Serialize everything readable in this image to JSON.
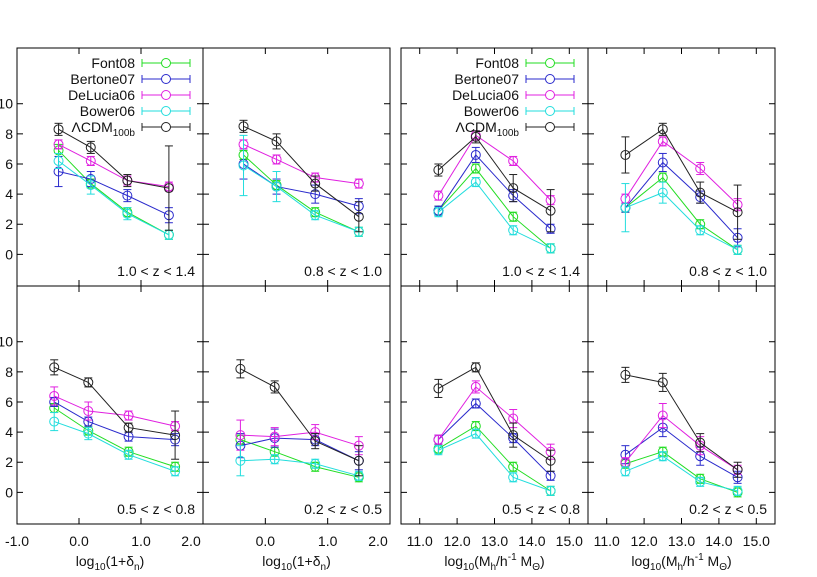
{
  "chart_data": [
    {
      "type": "line",
      "xlim": [
        -1,
        2
      ],
      "ylim": [
        -2.1,
        13.7
      ],
      "xticks": [
        {
          "value": -1,
          "label": "-1.0"
        },
        {
          "value": 0,
          "label": "0.0"
        },
        {
          "value": 1,
          "label": "1.0"
        },
        {
          "value": 2,
          "label": "2.0"
        }
      ],
      "xtick_labels": false,
      "yticks": [
        0,
        2,
        4,
        6,
        8,
        10
      ],
      "ytick_labels": true,
      "legend": true,
      "annotation": "1.0 < z < 1.4",
      "x": [
        -0.33,
        0.19,
        0.78,
        1.45
      ],
      "series": [
        {
          "name": "Font08",
          "color": "#22dd22",
          "values": [
            6.9,
            4.7,
            2.8,
            1.3
          ],
          "errors": [
            0.4,
            0.3,
            0.3,
            0.3
          ]
        },
        {
          "name": "Bertone07",
          "color": "#2a2acc",
          "values": [
            5.5,
            5.0,
            3.9,
            2.6
          ],
          "errors": [
            1.0,
            0.5,
            0.4,
            0.5
          ]
        },
        {
          "name": "DeLucia06",
          "color": "#e020e0",
          "values": [
            7.3,
            6.2,
            4.9,
            4.5
          ],
          "errors": [
            0.3,
            0.3,
            0.3,
            0.3
          ]
        },
        {
          "name": "Bower06",
          "color": "#22dddd",
          "values": [
            6.2,
            4.6,
            2.7,
            1.3
          ],
          "errors": [
            0.5,
            0.6,
            0.4,
            0.3
          ]
        },
        {
          "name": "ΛCDM",
          "name_subscript": "100b",
          "color": "#222222",
          "values": [
            8.3,
            7.1,
            4.9,
            4.4
          ],
          "errors": [
            0.4,
            0.4,
            0.4,
            2.8
          ]
        }
      ]
    },
    {
      "type": "line",
      "xlim": [
        -1,
        2
      ],
      "ylim": [
        -2.1,
        13.7
      ],
      "xticks": [
        0,
        1,
        2
      ],
      "xtick_labels": false,
      "yticks": [
        0,
        2,
        4,
        6,
        8,
        10
      ],
      "ytick_labels": false,
      "annotation": "0.8 < z < 1.0",
      "x": [
        -0.35,
        0.18,
        0.8,
        1.5
      ],
      "series": [
        {
          "color": "#22dd22",
          "values": [
            6.6,
            4.6,
            2.8,
            1.5
          ],
          "errors": [
            0.3,
            0.3,
            0.3,
            0.3
          ]
        },
        {
          "color": "#2a2acc",
          "values": [
            6.0,
            4.5,
            4.0,
            3.2
          ],
          "errors": [
            1.0,
            0.5,
            0.6,
            0.5
          ]
        },
        {
          "color": "#e020e0",
          "values": [
            7.3,
            6.3,
            5.1,
            4.7
          ],
          "errors": [
            0.3,
            0.3,
            0.3,
            0.3
          ]
        },
        {
          "color": "#22dddd",
          "values": [
            5.9,
            4.5,
            2.6,
            1.5
          ],
          "errors": [
            2.0,
            1.0,
            0.3,
            0.3
          ]
        },
        {
          "color": "#222222",
          "values": [
            8.5,
            7.5,
            4.7,
            2.5
          ],
          "errors": [
            0.4,
            0.5,
            0.5,
            1.0
          ]
        }
      ]
    },
    {
      "type": "line",
      "xlim": [
        10.5,
        15.5
      ],
      "ylim": [
        -2.1,
        13.7
      ],
      "xticks": [
        11,
        12,
        13,
        14,
        15
      ],
      "xtick_labels": false,
      "yticks": [
        0,
        2,
        4,
        6,
        8,
        10
      ],
      "ytick_labels": false,
      "legend": true,
      "annotation": "1.0 < z < 1.4",
      "x": [
        11.5,
        12.5,
        13.5,
        14.5
      ],
      "series": [
        {
          "name": "Font08",
          "color": "#22dd22",
          "values": [
            2.9,
            5.7,
            2.5,
            0.4
          ],
          "errors": [
            0.3,
            0.3,
            0.3,
            0.3
          ]
        },
        {
          "name": "Bertone07",
          "color": "#2a2acc",
          "values": [
            2.9,
            6.6,
            3.9,
            1.7
          ],
          "errors": [
            0.3,
            0.5,
            0.4,
            0.3
          ]
        },
        {
          "name": "DeLucia06",
          "color": "#e020e0",
          "values": [
            3.9,
            7.9,
            6.2,
            3.6
          ],
          "errors": [
            0.3,
            0.3,
            0.3,
            0.3
          ]
        },
        {
          "name": "Bower06",
          "color": "#22dddd",
          "values": [
            2.8,
            4.8,
            1.6,
            0.4
          ],
          "errors": [
            0.3,
            0.3,
            0.3,
            0.3
          ]
        },
        {
          "name": "ΛCDM",
          "name_subscript": "100b",
          "color": "#222222",
          "values": [
            5.6,
            7.8,
            4.4,
            2.9
          ],
          "errors": [
            0.4,
            0.4,
            0.9,
            1.4
          ]
        }
      ]
    },
    {
      "type": "line",
      "xlim": [
        10.5,
        15.5
      ],
      "ylim": [
        -2.1,
        13.7
      ],
      "xticks": [
        11,
        12,
        13,
        14,
        15
      ],
      "xtick_labels": false,
      "yticks": [
        0,
        2,
        4,
        6,
        8,
        10
      ],
      "ytick_labels": false,
      "annotation": "0.8 < z < 1.0",
      "x": [
        11.5,
        12.5,
        13.5,
        14.5
      ],
      "series": [
        {
          "color": "#22dd22",
          "values": [
            3.1,
            5.1,
            2.0,
            0.3
          ],
          "errors": [
            0.3,
            0.3,
            0.3,
            0.3
          ]
        },
        {
          "color": "#2a2acc",
          "values": [
            3.1,
            6.1,
            3.8,
            1.1
          ],
          "errors": [
            0.3,
            0.6,
            0.4,
            0.6
          ]
        },
        {
          "color": "#e020e0",
          "values": [
            3.7,
            7.5,
            5.7,
            3.3
          ],
          "errors": [
            0.3,
            0.3,
            0.4,
            0.4
          ]
        },
        {
          "color": "#22dddd",
          "values": [
            3.1,
            4.1,
            1.6,
            0.3
          ],
          "errors": [
            1.6,
            0.7,
            0.3,
            0.3
          ]
        },
        {
          "color": "#222222",
          "values": [
            6.6,
            8.3,
            4.1,
            2.8
          ],
          "errors": [
            1.2,
            0.4,
            0.7,
            1.8
          ]
        }
      ]
    },
    {
      "type": "line",
      "xlim": [
        -1,
        2
      ],
      "ylim": [
        -2.1,
        13.7
      ],
      "xticks": [
        {
          "value": -1,
          "label": "-1.0"
        },
        {
          "value": 0,
          "label": "0.0"
        },
        {
          "value": 1,
          "label": "1.0"
        },
        {
          "value": 2,
          "label": "2.0"
        }
      ],
      "xtick_labels": true,
      "yticks": [
        0,
        2,
        4,
        6,
        8,
        10
      ],
      "ytick_labels": true,
      "xlabel": [
        {
          "text": "log"
        },
        {
          "text": "10",
          "shift": "sub"
        },
        {
          "text": "(1+δ"
        },
        {
          "text": "n",
          "shift": "sub"
        },
        {
          "text": ")"
        }
      ],
      "annotation": "0.5 < z < 0.8",
      "x": [
        -0.4,
        0.15,
        0.8,
        1.55
      ],
      "series": [
        {
          "color": "#22dd22",
          "values": [
            5.6,
            4.1,
            2.7,
            1.7
          ],
          "errors": [
            0.3,
            0.3,
            0.3,
            0.3
          ]
        },
        {
          "color": "#2a2acc",
          "values": [
            6.0,
            4.7,
            3.7,
            3.5
          ],
          "errors": [
            0.3,
            0.3,
            0.3,
            0.4
          ]
        },
        {
          "color": "#e020e0",
          "values": [
            6.4,
            5.4,
            5.1,
            4.4
          ],
          "errors": [
            0.6,
            0.6,
            0.3,
            0.3
          ]
        },
        {
          "color": "#22dddd",
          "values": [
            4.7,
            3.9,
            2.5,
            1.4
          ],
          "errors": [
            0.6,
            0.4,
            0.3,
            0.3
          ]
        },
        {
          "color": "#222222",
          "values": [
            8.3,
            7.3,
            4.3,
            3.8
          ],
          "errors": [
            0.5,
            0.3,
            0.3,
            1.6
          ]
        }
      ]
    },
    {
      "type": "line",
      "xlim": [
        -1,
        2
      ],
      "ylim": [
        -2.1,
        13.7
      ],
      "xticks": [
        {
          "value": 0,
          "label": "0.0"
        },
        {
          "value": 1,
          "label": "1.0"
        },
        {
          "value": 2,
          "label": "2.0"
        }
      ],
      "xtick_labels": true,
      "yticks": [
        0,
        2,
        4,
        6,
        8,
        10
      ],
      "ytick_labels": false,
      "xlabel": [
        {
          "text": "log"
        },
        {
          "text": "10",
          "shift": "sub"
        },
        {
          "text": "(1+δ"
        },
        {
          "text": "n",
          "shift": "sub"
        },
        {
          "text": ")"
        }
      ],
      "annotation": "0.2 < z < 0.5",
      "x": [
        -0.4,
        0.15,
        0.8,
        1.5
      ],
      "series": [
        {
          "color": "#22dd22",
          "values": [
            3.5,
            2.7,
            1.7,
            1.0
          ],
          "errors": [
            0.3,
            0.3,
            0.3,
            0.3
          ]
        },
        {
          "color": "#2a2acc",
          "values": [
            3.1,
            3.6,
            3.5,
            2.1
          ],
          "errors": [
            0.8,
            0.6,
            0.4,
            0.6
          ]
        },
        {
          "color": "#e020e0",
          "values": [
            3.8,
            3.7,
            4.0,
            3.1
          ],
          "errors": [
            1.0,
            0.6,
            0.5,
            0.6
          ]
        },
        {
          "color": "#22dddd",
          "values": [
            2.1,
            2.2,
            1.9,
            1.1
          ],
          "errors": [
            1.0,
            0.3,
            0.3,
            0.3
          ]
        },
        {
          "color": "#222222",
          "values": [
            8.2,
            7.0,
            3.4,
            2.1
          ],
          "errors": [
            0.6,
            0.4,
            0.5,
            1.0
          ]
        }
      ]
    },
    {
      "type": "line",
      "xlim": [
        10.5,
        15.5
      ],
      "ylim": [
        -2.1,
        13.7
      ],
      "xticks": [
        {
          "value": 11,
          "label": "11.0"
        },
        {
          "value": 12,
          "label": "12.0"
        },
        {
          "value": 13,
          "label": "13.0"
        },
        {
          "value": 14,
          "label": "14.0"
        },
        {
          "value": 15,
          "label": "15.0"
        }
      ],
      "xtick_labels": true,
      "yticks": [
        0,
        2,
        4,
        6,
        8,
        10
      ],
      "ytick_labels": false,
      "xlabel": [
        {
          "text": "log"
        },
        {
          "text": "10",
          "shift": "sub"
        },
        {
          "text": "(M"
        },
        {
          "text": "h",
          "shift": "sub"
        },
        {
          "text": "/h"
        },
        {
          "text": "-1",
          "shift": "sup"
        },
        {
          "text": " M"
        },
        {
          "text": "Θ",
          "shift": "sub"
        },
        {
          "text": ")"
        }
      ],
      "annotation": "0.5 < z < 0.8",
      "x": [
        11.5,
        12.5,
        13.5,
        14.5
      ],
      "series": [
        {
          "color": "#22dd22",
          "values": [
            2.9,
            4.4,
            1.7,
            0.1
          ],
          "errors": [
            0.3,
            0.3,
            0.3,
            0.3
          ]
        },
        {
          "color": "#2a2acc",
          "values": [
            3.5,
            5.9,
            3.6,
            1.1
          ],
          "errors": [
            0.3,
            0.3,
            0.3,
            0.3
          ]
        },
        {
          "color": "#e020e0",
          "values": [
            3.5,
            7.0,
            4.9,
            2.7
          ],
          "errors": [
            0.3,
            0.4,
            0.6,
            0.5
          ]
        },
        {
          "color": "#22dddd",
          "values": [
            2.8,
            3.9,
            1.0,
            0.1
          ],
          "errors": [
            0.3,
            0.3,
            0.3,
            0.3
          ]
        },
        {
          "color": "#222222",
          "values": [
            6.9,
            8.3,
            3.8,
            2.1
          ],
          "errors": [
            0.6,
            0.3,
            0.8,
            0.7
          ]
        }
      ]
    },
    {
      "type": "line",
      "xlim": [
        10.5,
        15.5
      ],
      "ylim": [
        -2.1,
        13.7
      ],
      "xticks": [
        {
          "value": 11,
          "label": "11.0"
        },
        {
          "value": 12,
          "label": "12.0"
        },
        {
          "value": 13,
          "label": "13.0"
        },
        {
          "value": 14,
          "label": "14.0"
        },
        {
          "value": 15,
          "label": "15.0"
        }
      ],
      "xtick_labels": true,
      "yticks": [
        0,
        2,
        4,
        6,
        8,
        10
      ],
      "ytick_labels": false,
      "xlabel": [
        {
          "text": "log"
        },
        {
          "text": "10",
          "shift": "sub"
        },
        {
          "text": "(M"
        },
        {
          "text": "h",
          "shift": "sub"
        },
        {
          "text": "/h"
        },
        {
          "text": "-1",
          "shift": "sup"
        },
        {
          "text": " M"
        },
        {
          "text": "Θ",
          "shift": "sub"
        },
        {
          "text": ")"
        }
      ],
      "annotation": "0.2 < z < 0.5",
      "x": [
        11.5,
        12.5,
        13.5,
        14.5
      ],
      "series": [
        {
          "color": "#22dd22",
          "values": [
            1.9,
            2.7,
            0.9,
            0.0
          ],
          "errors": [
            0.3,
            0.3,
            0.3,
            0.3
          ]
        },
        {
          "color": "#2a2acc",
          "values": [
            2.5,
            4.3,
            2.4,
            1.0
          ],
          "errors": [
            0.6,
            0.6,
            0.6,
            0.4
          ]
        },
        {
          "color": "#e020e0",
          "values": [
            2.0,
            5.1,
            3.1,
            1.5
          ],
          "errors": [
            0.3,
            0.8,
            0.6,
            0.3
          ]
        },
        {
          "color": "#22dddd",
          "values": [
            1.4,
            2.4,
            0.7,
            0.1
          ],
          "errors": [
            0.3,
            0.3,
            0.3,
            0.3
          ]
        },
        {
          "color": "#222222",
          "values": [
            7.8,
            7.3,
            3.3,
            1.5
          ],
          "errors": [
            0.5,
            0.6,
            0.6,
            0.5
          ]
        }
      ]
    }
  ]
}
